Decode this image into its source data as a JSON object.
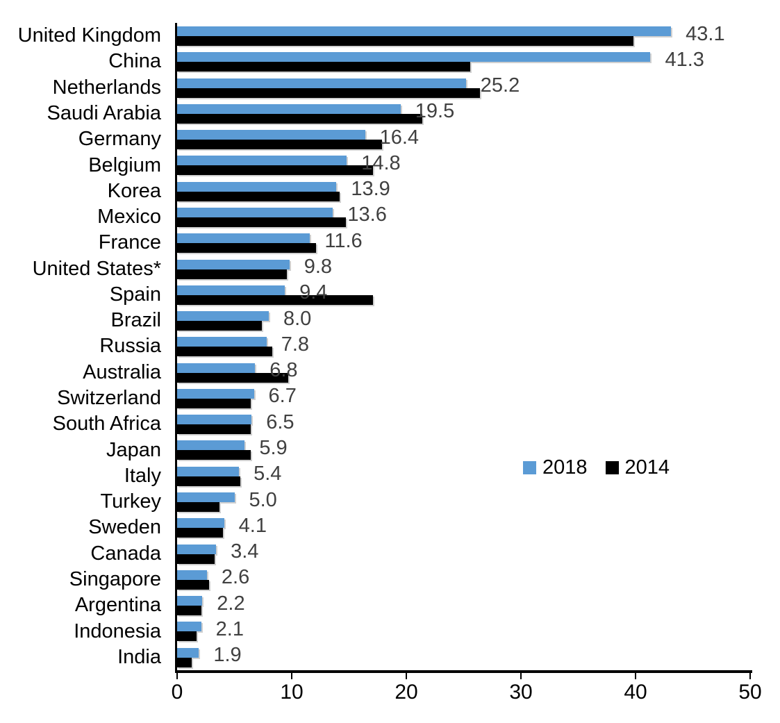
{
  "chart_data": {
    "type": "bar",
    "orientation": "horizontal",
    "title": "",
    "xlabel": "",
    "ylabel": "",
    "xlim": [
      0,
      50
    ],
    "x_ticks": [
      0,
      10,
      20,
      30,
      40,
      50
    ],
    "grid": false,
    "categories": [
      "United Kingdom",
      "China",
      "Netherlands",
      "Saudi Arabia",
      "Germany",
      "Belgium",
      "Korea",
      "Mexico",
      "France",
      "United States*",
      "Spain",
      "Brazil",
      "Russia",
      "Australia",
      "Switzerland",
      "South Africa",
      "Japan",
      "Italy",
      "Turkey",
      "Sweden",
      "Canada",
      "Singapore",
      "Argentina",
      "Indonesia",
      "India"
    ],
    "series": [
      {
        "name": "2018",
        "color": "#5B9BD5",
        "data_labels_visible": true,
        "values": [
          43.1,
          41.3,
          25.2,
          19.5,
          16.4,
          14.8,
          13.9,
          13.6,
          11.6,
          9.8,
          9.4,
          8.0,
          7.8,
          6.8,
          6.7,
          6.5,
          5.9,
          5.4,
          5.0,
          4.1,
          3.4,
          2.6,
          2.2,
          2.1,
          1.9
        ]
      },
      {
        "name": "2014",
        "color": "#000000",
        "data_labels_visible": false,
        "values": [
          39.8,
          25.6,
          26.4,
          21.4,
          17.9,
          17.1,
          14.2,
          14.7,
          12.1,
          9.6,
          17.1,
          7.4,
          8.3,
          9.7,
          6.4,
          6.4,
          6.4,
          5.5,
          3.7,
          4.0,
          3.3,
          2.8,
          2.1,
          1.7,
          1.3
        ]
      }
    ],
    "legend": {
      "position": "middle-right",
      "entries": [
        "2018",
        "2014"
      ]
    },
    "colors": {
      "value_label": "#404040",
      "axis": "#000000",
      "category_label": "#000000",
      "tick_label": "#000000"
    }
  }
}
